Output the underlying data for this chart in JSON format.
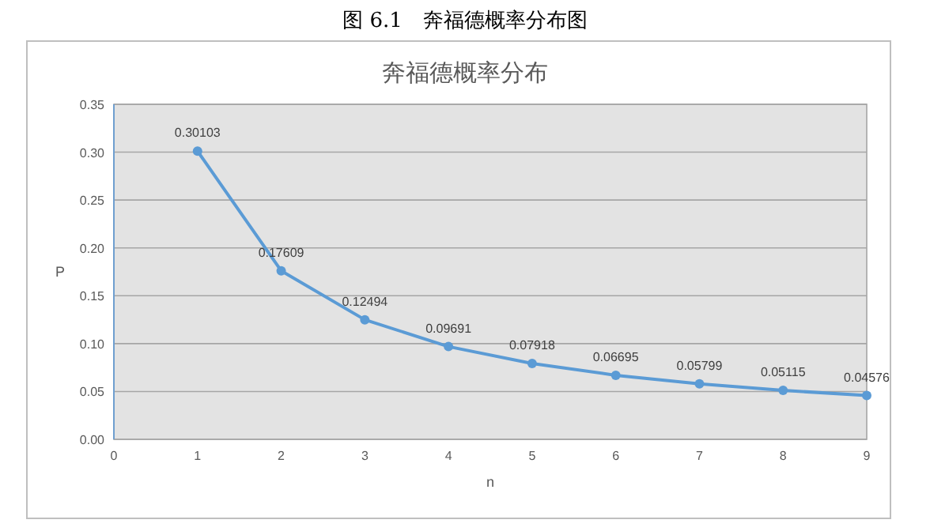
{
  "chart_data": {
    "type": "line",
    "title": "奔福德概率分布",
    "annotations": [
      "图 6.1　奔福德概率分布图"
    ],
    "xlabel": "n",
    "ylabel": "P",
    "x": [
      1,
      2,
      3,
      4,
      5,
      6,
      7,
      8,
      9
    ],
    "series": [
      {
        "color": "#5b9bd5",
        "values": [
          0.30103,
          0.17609,
          0.12494,
          0.09691,
          0.07918,
          0.06695,
          0.05799,
          0.05115,
          0.04576
        ]
      }
    ],
    "xlim": [
      0,
      9
    ],
    "xticks": [
      0,
      1,
      2,
      3,
      4,
      5,
      6,
      7,
      8,
      9
    ],
    "ylim": [
      0,
      0.35
    ],
    "yticks": [
      {
        "value": 0,
        "label": "0.00"
      },
      {
        "value": 0.05,
        "label": "0.05"
      },
      {
        "value": 0.1,
        "label": "0.10"
      },
      {
        "value": 0.15,
        "label": "0.15"
      },
      {
        "value": 0.2,
        "label": "0.20"
      },
      {
        "value": 0.25,
        "label": "0.25"
      },
      {
        "value": 0.3,
        "label": "0.30"
      },
      {
        "value": 0.35,
        "label": "0.35"
      }
    ],
    "grid": "y",
    "marker": "circle",
    "line_style": "solid",
    "data_labels": true
  }
}
